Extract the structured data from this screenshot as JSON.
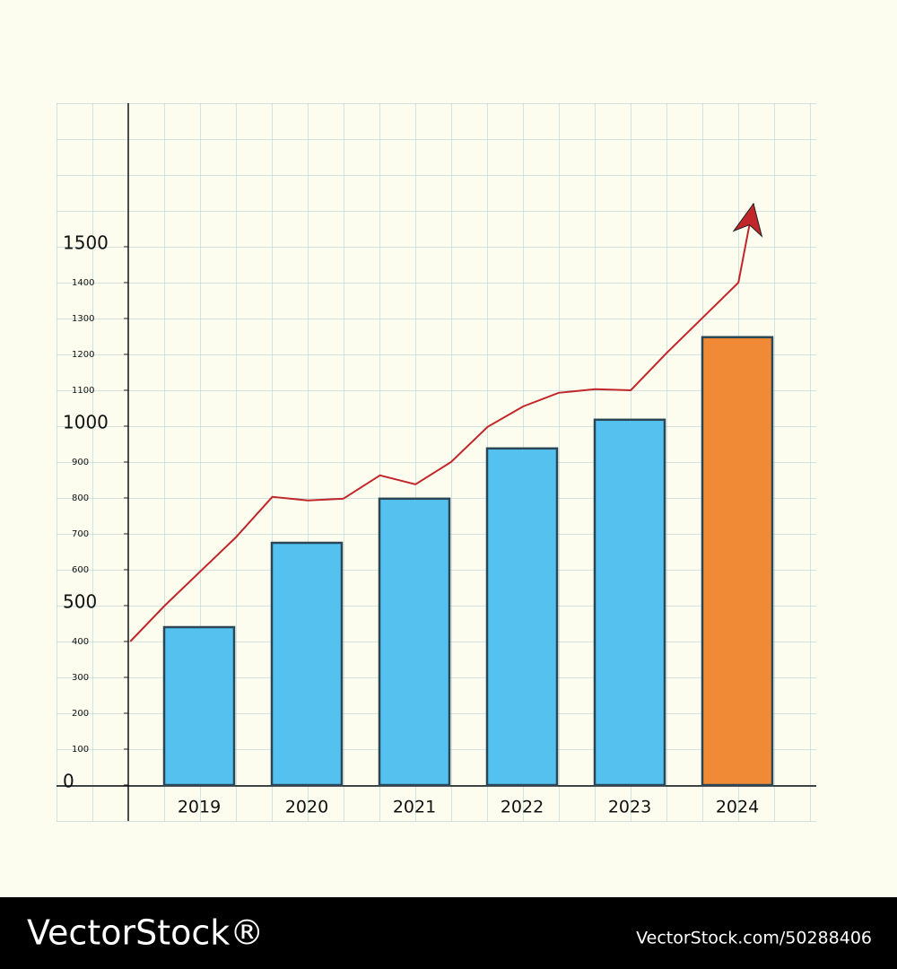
{
  "chart_data": {
    "type": "bar",
    "categories": [
      "2019",
      "2020",
      "2021",
      "2022",
      "2023",
      "2024"
    ],
    "values": [
      440,
      675,
      798,
      938,
      1018,
      1248
    ],
    "colors": [
      "#54c1ef",
      "#54c1ef",
      "#54c1ef",
      "#54c1ef",
      "#54c1ef",
      "#f08a36"
    ],
    "ylim": [
      -100,
      1900
    ],
    "yticks": [
      0,
      100,
      200,
      300,
      400,
      500,
      600,
      700,
      800,
      900,
      1000,
      1100,
      1200,
      1300,
      1400,
      1500
    ],
    "trend": {
      "type": "line",
      "color": "#c0262a",
      "x": [
        2018.36,
        2018.68,
        2019.34,
        2019.68,
        2020.01,
        2020.34,
        2020.68,
        2021.01,
        2021.34,
        2021.68,
        2022.01,
        2022.34,
        2022.68,
        2023.01,
        2023.34,
        2023.68,
        2024.01,
        2024.15
      ],
      "values": [
        400,
        500,
        690,
        803,
        793,
        798,
        863,
        838,
        900,
        998,
        1055,
        1093,
        1103,
        1100,
        1203,
        1303,
        1400,
        1620
      ]
    }
  },
  "watermark": {
    "brand": "VectorStock®",
    "url": "VectorStock.com/50288406"
  }
}
